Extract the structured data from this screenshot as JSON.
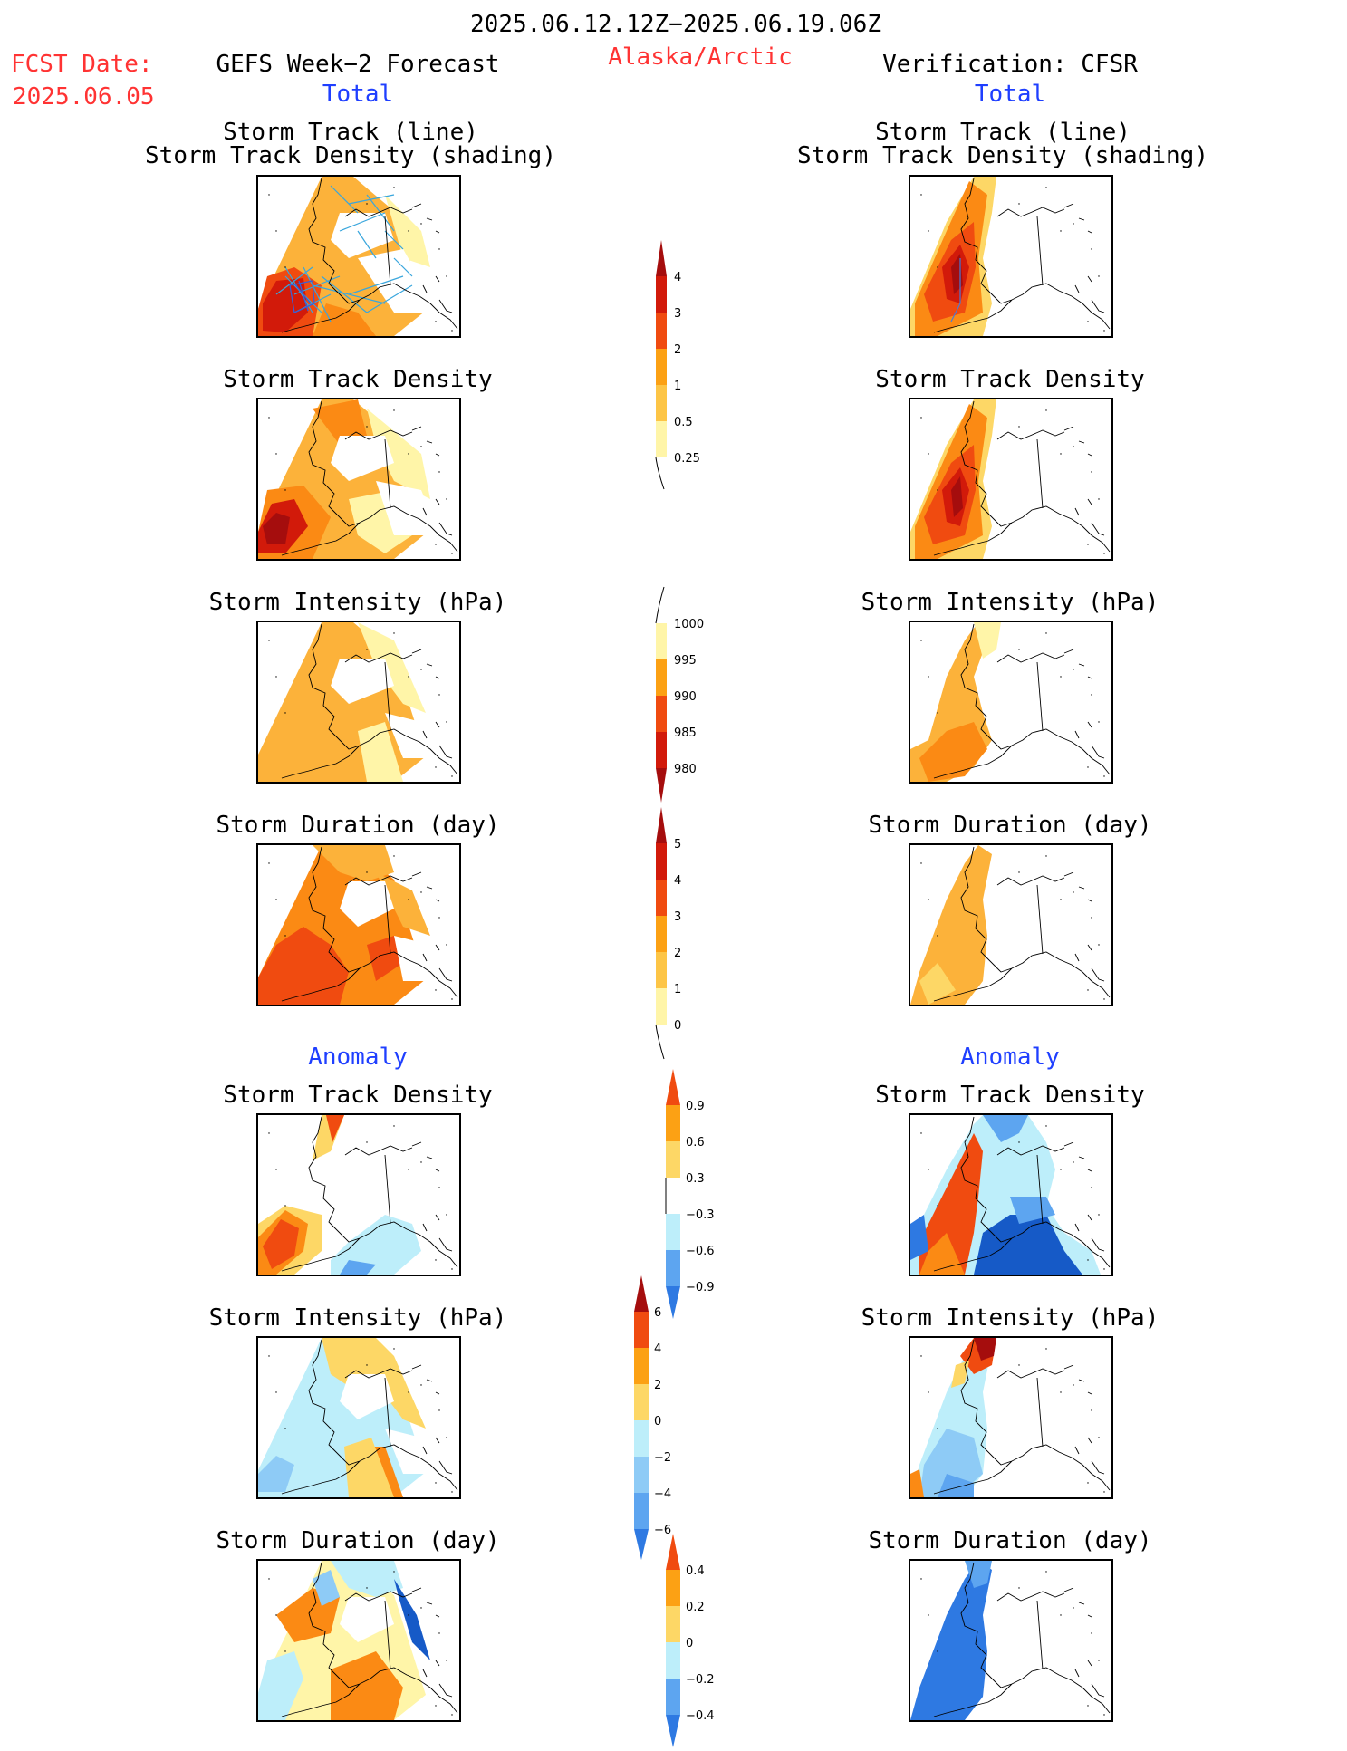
{
  "header": {
    "date_range": "2025.06.12.12Z−2025.06.19.06Z",
    "fcst_label": "FCST Date:",
    "fcst_date": "2025.06.05",
    "region": "Alaska/Arctic",
    "left_title": "GEFS Week−2 Forecast",
    "right_title": "Verification: CFSR",
    "total_left": "Total",
    "total_right": "Total",
    "anomaly_left": "Anomaly",
    "anomaly_right": "Anomaly"
  },
  "panels": {
    "track_line": "Storm Track (line)",
    "track_density_shading": "Storm Track Density (shading)",
    "track_density": "Storm Track Density",
    "intensity": "Storm Intensity (hPa)",
    "duration": "Storm Duration (day)"
  },
  "colorbars": {
    "density": [
      "4",
      "3",
      "2",
      "1",
      "0.5",
      "0.25"
    ],
    "intensity": [
      "1000",
      "995",
      "990",
      "985",
      "980"
    ],
    "duration": [
      "5",
      "4",
      "3",
      "2",
      "1",
      "0"
    ],
    "density_anom": [
      "0.9",
      "0.6",
      "0.3",
      "−0.3",
      "−0.6",
      "−0.9"
    ],
    "intensity_anom": [
      "6",
      "4",
      "2",
      "0",
      "−2",
      "−4",
      "−6"
    ],
    "duration_anom": [
      "0.4",
      "0.2",
      "0",
      "−0.2",
      "−0.4"
    ]
  },
  "colors": {
    "yellow_light": "#fff5a8",
    "yellow": "#fdd766",
    "orange_light": "#fcb23a",
    "orange": "#fb8a14",
    "red_orange": "#f04b10",
    "red": "#d21a0a",
    "dark_red": "#a50d0d",
    "blue_pale": "#bdeefa",
    "blue_light": "#8ecbf6",
    "blue": "#5da5f0",
    "blue_mid": "#2e79e2",
    "blue_dark": "#165ac7",
    "track_line": "#39a6dd"
  }
}
